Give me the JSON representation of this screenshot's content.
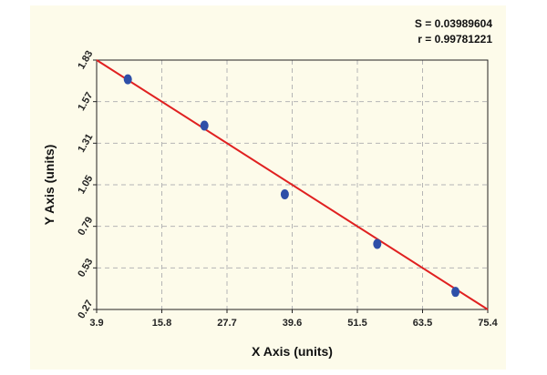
{
  "stats": {
    "s_text": "S = 0.03989604",
    "r_text": "r = 0.99781221"
  },
  "colors": {
    "panel": "#fdfbea",
    "grid": "#b5b5b5",
    "fit_line": "#e02020",
    "points": "#2e4fa8"
  },
  "chart_data": {
    "type": "scatter",
    "xlabel": "X Axis (units)",
    "ylabel": "Y Axis (units)",
    "xlim": [
      3.9,
      75.4
    ],
    "ylim": [
      0.27,
      1.83
    ],
    "xticks": [
      "3.9",
      "15.8",
      "27.7",
      "39.6",
      "51.5",
      "63.5",
      "75.4"
    ],
    "yticks": [
      "0.27",
      "0.53",
      "0.79",
      "1.05",
      "1.31",
      "1.57",
      "1.83"
    ],
    "grid": true,
    "points": [
      {
        "x": 9.6,
        "y": 1.71
      },
      {
        "x": 23.6,
        "y": 1.42
      },
      {
        "x": 38.3,
        "y": 0.99
      },
      {
        "x": 55.2,
        "y": 0.68
      },
      {
        "x": 69.5,
        "y": 0.38
      }
    ],
    "fit_line": {
      "x": [
        3.9,
        75.4
      ],
      "y": [
        1.83,
        0.27
      ]
    }
  }
}
